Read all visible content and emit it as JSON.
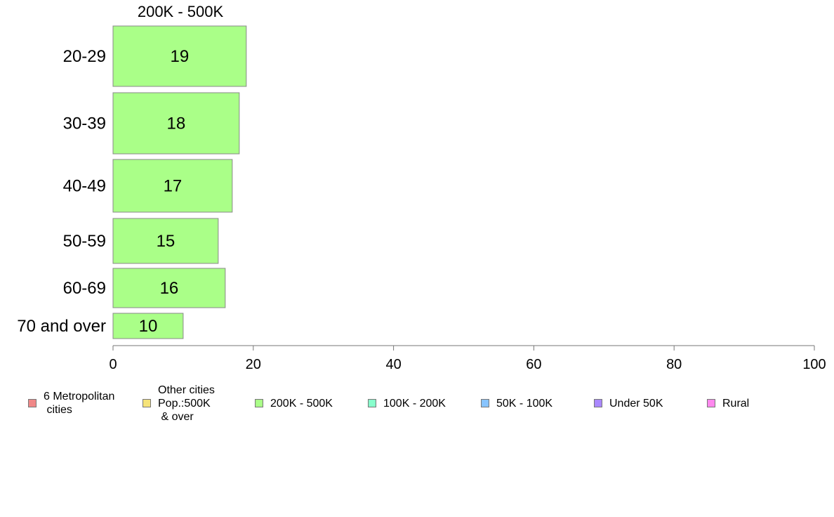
{
  "chart_data": {
    "type": "bar",
    "orientation": "horizontal",
    "panel_title": "200K - 500K",
    "categories": [
      "20-29",
      "30-39",
      "40-49",
      "50-59",
      "60-69",
      "70 and over"
    ],
    "values": [
      19,
      18,
      17,
      15,
      16,
      10
    ],
    "data_labels": [
      "19",
      "18",
      "17",
      "15",
      "16",
      "10"
    ],
    "bar_color": "#aaff88",
    "xlim": [
      0,
      100
    ],
    "xticks": [
      0,
      20,
      40,
      60,
      80,
      100
    ],
    "xtick_labels": [
      "0",
      "20",
      "40",
      "60",
      "80",
      "100"
    ],
    "grid": false,
    "legend_position": "bottom",
    "legend": [
      {
        "label": "6 Metropolitan\n cities",
        "color": "#f08888"
      },
      {
        "label": "Other cities\nPop.:500K\n & over",
        "color": "#f5e37a"
      },
      {
        "label": "200K - 500K",
        "color": "#aaff88"
      },
      {
        "label": "100K - 200K",
        "color": "#88ffcc"
      },
      {
        "label": "50K - 100K",
        "color": "#88c4ff"
      },
      {
        "label": "Under 50K",
        "color": "#aa88ff"
      },
      {
        "label": "Rural",
        "color": "#ff88ee"
      }
    ]
  }
}
